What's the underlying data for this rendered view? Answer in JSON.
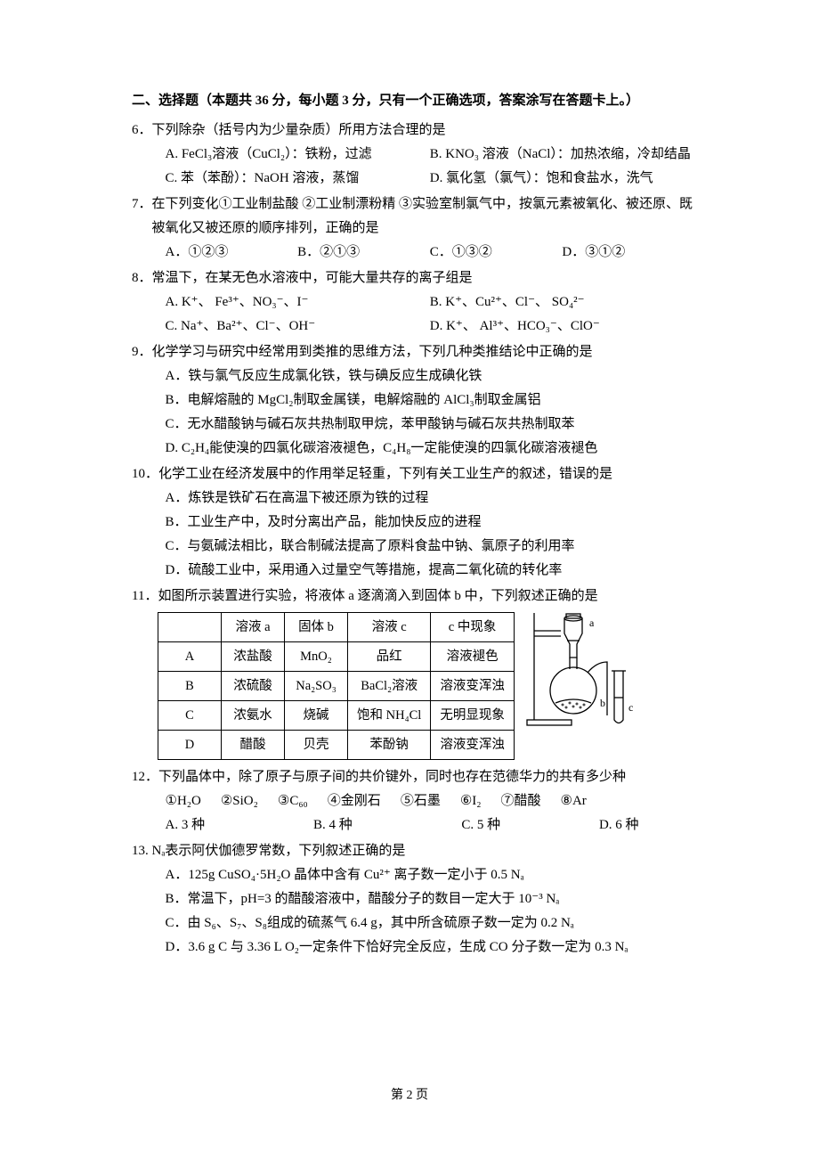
{
  "section_title": "二、选择题（本题共 36 分，每小题 3 分，只有一个正确选项，答案涂写在答题卡上。）",
  "q6": {
    "stem": "6．下列除杂（括号内为少量杂质）所用方法合理的是",
    "A": "A. FeCl₃溶液（CuCl₂）：铁粉，过滤",
    "B": "B. KNO₃ 溶液（NaCl）：加热浓缩，冷却结晶",
    "C": "C. 苯（苯酚）：NaOH 溶液，蒸馏",
    "D": "D. 氯化氢（氯气）：饱和食盐水，洗气"
  },
  "q7": {
    "stem": "7．在下列变化①工业制盐酸  ②工业制漂粉精  ③实验室制氯气中，按氯元素被氧化、被还原、既被氧化又被还原的顺序排列，正确的是",
    "A": "A．①②③",
    "B": "B．②①③",
    "C": "C．①③②",
    "D": "D．③①②"
  },
  "q8": {
    "stem": "8．常温下，在某无色水溶液中，可能大量共存的离子组是",
    "A": "A. K⁺、 Fe³⁺、NO₃⁻、I⁻",
    "B": "B. K⁺、Cu²⁺、Cl⁻、 SO₄²⁻",
    "C": "C. Na⁺、Ba²⁺、Cl⁻、OH⁻",
    "D": "D. K⁺、 Al³⁺、HCO₃⁻、ClO⁻"
  },
  "q9": {
    "stem": "9．化学学习与研究中经常用到类推的思维方法，下列几种类推结论中正确的是",
    "A": "A．铁与氯气反应生成氯化铁，铁与碘反应生成碘化铁",
    "B": "B．电解熔融的 MgCl₂制取金属镁，电解熔融的 AlCl₃制取金属铝",
    "C": "C．无水醋酸钠与碱石灰共热制取甲烷，苯甲酸钠与碱石灰共热制取苯",
    "D": "D. C₂H₄能使溴的四氯化碳溶液褪色，C₄H₈一定能使溴的四氯化碳溶液褪色"
  },
  "q10": {
    "stem": "10．化学工业在经济发展中的作用举足轻重，下列有关工业生产的叙述，错误的是",
    "A": "A．炼铁是铁矿石在高温下被还原为铁的过程",
    "B": "B．工业生产中，及时分离出产品，能加快反应的进程",
    "C": "C．与氨碱法相比，联合制碱法提高了原料食盐中钠、氯原子的利用率",
    "D": "D．硫酸工业中，采用通入过量空气等措施，提高二氧化硫的转化率"
  },
  "q11": {
    "stem": "11．如图所示装置进行实验，将液体 a 逐滴滴入到固体 b 中，下列叙述正确的是",
    "table": {
      "headers": [
        "",
        "溶液 a",
        "固体 b",
        "溶液 c",
        "c 中现象"
      ],
      "rows": [
        [
          "A",
          "浓盐酸",
          "MnO₂",
          "品红",
          "溶液褪色"
        ],
        [
          "B",
          "浓硫酸",
          "Na₂SO₃",
          "BaCl₂溶液",
          "溶液变浑浊"
        ],
        [
          "C",
          "浓氨水",
          "烧碱",
          "饱和 NH₄Cl",
          "无明显现象"
        ],
        [
          "D",
          "醋酸",
          "贝壳",
          "苯酚钠",
          "溶液变浑浊"
        ]
      ]
    },
    "labels": {
      "a": "a",
      "b": "b",
      "c": "c"
    }
  },
  "q12": {
    "stem": "12．下列晶体中，除了原子与原子间的共价键外，同时也存在范德华力的共有多少种",
    "items": [
      "①H₂O",
      "②SiO₂",
      "③C₆₀",
      "④金刚石",
      "⑤石墨",
      "⑥I₂",
      "⑦醋酸",
      "⑧Ar"
    ],
    "A": "A. 3 种",
    "B": "B. 4 种",
    "C": "C. 5 种",
    "D": "D. 6 种"
  },
  "q13": {
    "stem": "13. Nₐ表示阿伏伽德罗常数，下列叙述正确的是",
    "A": "A．125g CuSO₄·5H₂O 晶体中含有 Cu²⁺ 离子数一定小于 0.5 Nₐ",
    "B": "B．常温下，pH=3 的醋酸溶液中，醋酸分子的数目一定大于 10⁻³ Nₐ",
    "C": "C．由 S₆、S₇、S₈组成的硫蒸气 6.4 g，其中所含硫原子数一定为 0.2 Nₐ",
    "D": "D．3.6 g C 与 3.36 L O₂一定条件下恰好完全反应，生成 CO 分子数一定为 0.3 Nₐ"
  },
  "footer": "第 2 页",
  "colors": {
    "text": "#000000",
    "background": "#ffffff",
    "border": "#000000"
  }
}
